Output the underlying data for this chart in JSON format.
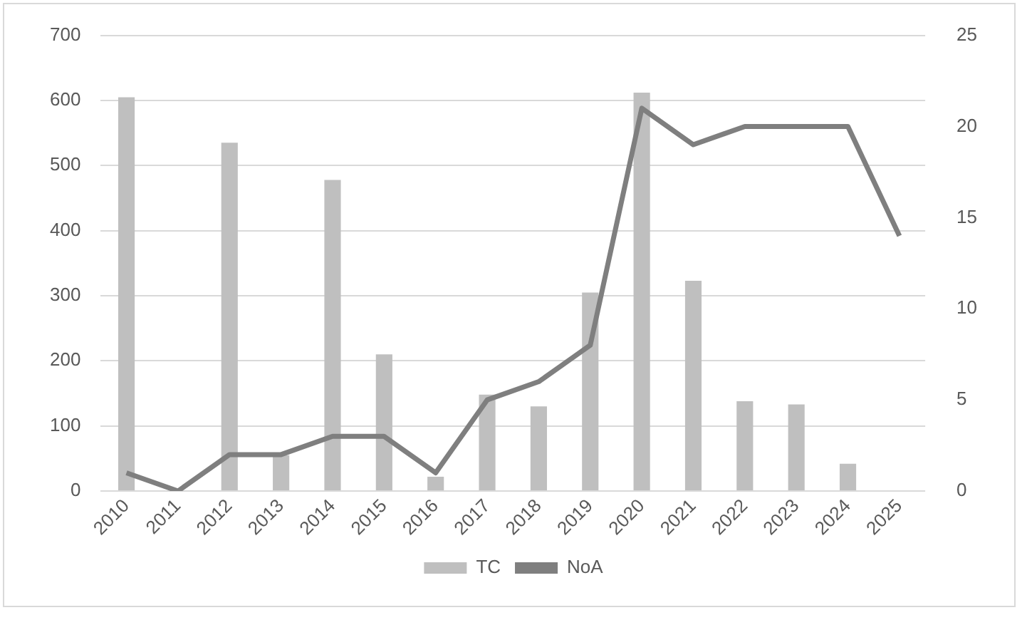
{
  "chart_data": {
    "type": "bar",
    "categories": [
      "2010",
      "2011",
      "2012",
      "2013",
      "2014",
      "2015",
      "2016",
      "2017",
      "2018",
      "2019",
      "2020",
      "2021",
      "2022",
      "2023",
      "2024",
      "2025"
    ],
    "series": [
      {
        "name": "TC",
        "color": "#bfbfbf",
        "values": [
          605,
          null,
          535,
          55,
          478,
          210,
          22,
          148,
          130,
          305,
          612,
          323,
          138,
          133,
          42,
          null
        ]
      },
      {
        "name": "NoA",
        "type": "line",
        "axis": "y2",
        "color": "#7f7f7f",
        "values": [
          1,
          0,
          2,
          2,
          3,
          3,
          1,
          5,
          6,
          8,
          21,
          19,
          20,
          20,
          20,
          14
        ]
      }
    ],
    "ylim": [
      0,
      700
    ],
    "yticks": [
      0,
      100,
      200,
      300,
      400,
      500,
      600,
      700
    ],
    "y2lim": [
      0,
      25
    ],
    "y2ticks": [
      0,
      5,
      10,
      15,
      20,
      25
    ],
    "grid": "y",
    "legend": "bottom",
    "marker": "none",
    "line_style": "solid"
  }
}
